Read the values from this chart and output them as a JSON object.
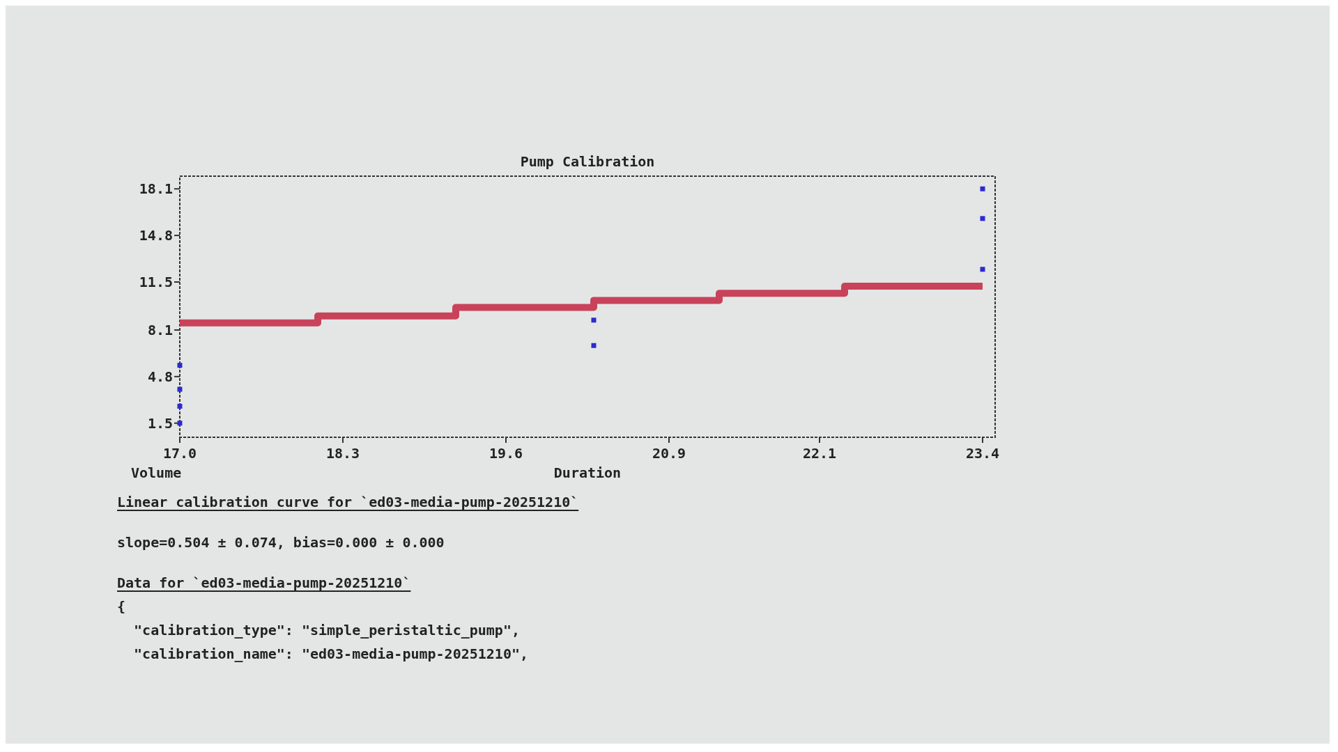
{
  "chart_data": {
    "type": "scatter",
    "title": "Pump Calibration",
    "xlabel": "Duration",
    "ylabel": "Volume",
    "xlim": [
      17.0,
      23.5
    ],
    "ylim": [
      0.5,
      19.0
    ],
    "xticks": [
      {
        "value": 17.0,
        "label": "17.0"
      },
      18.3,
      19.6,
      20.9,
      22.1,
      23.4
    ],
    "yticks": [
      1.5,
      4.8,
      8.1,
      11.5,
      14.8,
      18.1
    ],
    "marker": "square",
    "grid": false,
    "series": [
      {
        "type": "step",
        "marker": "none",
        "color": "#c8435a",
        "x": [
          17.0,
          18.1,
          19.2,
          20.3,
          21.3,
          22.3,
          23.4
        ],
        "values": [
          8.6,
          9.1,
          9.7,
          10.2,
          10.7,
          11.2,
          11.2
        ]
      },
      {
        "color": "#2b2bd0",
        "x": [
          17.0,
          17.0,
          17.0,
          17.0,
          20.3,
          20.3,
          23.4,
          23.4,
          23.4
        ],
        "values": [
          1.5,
          2.7,
          3.9,
          5.6,
          7.0,
          8.8,
          12.4,
          16.0,
          18.1
        ]
      }
    ],
    "annotations": [
      "Linear calibration curve for `ed03-media-pump-20251210`",
      "slope=0.504 ± 0.074, bias=0.000 ± 0.000",
      "Data for `ed03-media-pump-20251210`",
      "{",
      "  \"calibration_type\": \"simple_peristaltic_pump\",",
      "  \"calibration_name\": \"ed03-media-pump-20251210\","
    ]
  }
}
